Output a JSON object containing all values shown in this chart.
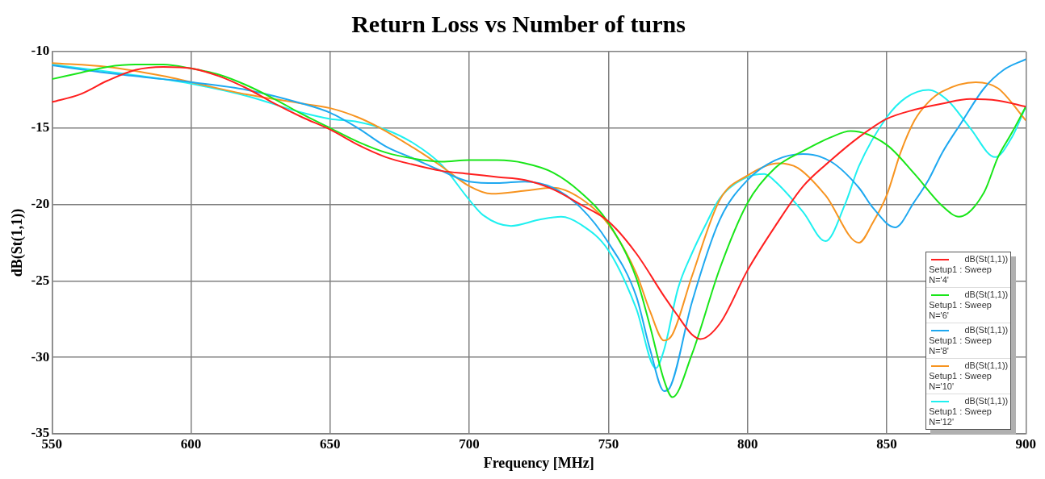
{
  "chart_data": {
    "type": "line",
    "title": "Return Loss vs Number of turns",
    "xlabel": "Frequency [MHz]",
    "ylabel": "dB(St(1,1))",
    "xlim": [
      550,
      900
    ],
    "xticks": [
      550,
      600,
      650,
      700,
      750,
      800,
      850,
      900
    ],
    "ylim": [
      -35,
      -10
    ],
    "yticks": [
      -35,
      -30,
      -25,
      -20,
      -15,
      -10
    ],
    "grid": true,
    "legend": "bottom right",
    "marker": "none",
    "line_style": "solid",
    "series": [
      {
        "name": "dB(St(1,1))\nSetup1 : Sweep\nN='4'",
        "color": "#ff1f1f",
        "x": [
          550,
          560,
          570,
          580,
          590,
          600,
          610,
          620,
          630,
          640,
          650,
          660,
          670,
          680,
          690,
          700,
          710,
          720,
          730,
          740,
          750,
          760,
          770,
          775,
          780,
          783,
          790,
          800,
          810,
          820,
          830,
          840,
          850,
          860,
          870,
          880,
          890,
          900
        ],
        "values": [
          -13.3,
          -12.8,
          -11.9,
          -11.2,
          -11.0,
          -11.1,
          -11.6,
          -12.4,
          -13.4,
          -14.3,
          -15.1,
          -16.1,
          -16.9,
          -17.4,
          -17.8,
          -18.0,
          -18.2,
          -18.4,
          -19.0,
          -20.0,
          -21.1,
          -23.2,
          -26.0,
          -27.3,
          -28.5,
          -28.8,
          -27.8,
          -24.3,
          -21.4,
          -18.8,
          -17.1,
          -15.6,
          -14.4,
          -13.8,
          -13.4,
          -13.1,
          -13.2,
          -13.6
        ]
      },
      {
        "name": "dB(St(1,1))\nSetup1 : Sweep\nN='6'",
        "color": "#19e619",
        "x": [
          550,
          560,
          570,
          580,
          590,
          600,
          610,
          620,
          630,
          640,
          650,
          660,
          670,
          680,
          690,
          700,
          710,
          720,
          730,
          740,
          750,
          760,
          765,
          770,
          773,
          780,
          790,
          800,
          810,
          820,
          830,
          837,
          850,
          860,
          870,
          876,
          885,
          890,
          895,
          900
        ],
        "values": [
          -11.8,
          -11.4,
          -11.0,
          -10.85,
          -10.85,
          -11.1,
          -11.5,
          -12.2,
          -13.1,
          -14.1,
          -15.0,
          -15.9,
          -16.6,
          -17.0,
          -17.2,
          -17.1,
          -17.1,
          -17.3,
          -17.9,
          -19.2,
          -21.2,
          -24.8,
          -28.0,
          -31.5,
          -32.6,
          -29.8,
          -24.2,
          -19.9,
          -17.6,
          -16.5,
          -15.6,
          -15.2,
          -16.1,
          -18.0,
          -20.1,
          -20.8,
          -19.2,
          -16.9,
          -15.3,
          -13.6
        ]
      },
      {
        "name": "dB(St(1,1))\nSetup1 : Sweep\nN='8'",
        "color": "#1ea8f0",
        "x": [
          550,
          570,
          590,
          600,
          620,
          640,
          650,
          660,
          670,
          680,
          690,
          700,
          710,
          720,
          730,
          740,
          750,
          760,
          765,
          770,
          772,
          780,
          790,
          800,
          810,
          820,
          830,
          840,
          845,
          853,
          860,
          865,
          870,
          877,
          885,
          892,
          900
        ],
        "values": [
          -10.9,
          -11.4,
          -11.8,
          -12.0,
          -12.5,
          -13.4,
          -14.0,
          -15.0,
          -16.2,
          -17.0,
          -17.8,
          -18.5,
          -18.6,
          -18.5,
          -18.9,
          -20.2,
          -22.5,
          -26.0,
          -29.5,
          -32.2,
          -32.0,
          -26.4,
          -21.0,
          -18.4,
          -17.1,
          -16.7,
          -17.2,
          -18.9,
          -20.2,
          -21.5,
          -19.8,
          -18.4,
          -16.6,
          -14.6,
          -12.4,
          -11.2,
          -10.5
        ]
      },
      {
        "name": "dB(St(1,1))\nSetup1 : Sweep\nN='10'",
        "color": "#f79420",
        "x": [
          550,
          570,
          590,
          600,
          620,
          640,
          650,
          660,
          668,
          680,
          690,
          700,
          708,
          720,
          730,
          740,
          750,
          760,
          765,
          770,
          773,
          780,
          790,
          800,
          811,
          818,
          828,
          840,
          845,
          850,
          855,
          860,
          865,
          870,
          882,
          890,
          900
        ],
        "values": [
          -10.75,
          -11.0,
          -11.6,
          -12.0,
          -12.8,
          -13.4,
          -13.7,
          -14.3,
          -15.0,
          -16.3,
          -17.5,
          -18.8,
          -19.3,
          -19.1,
          -18.9,
          -19.6,
          -21.3,
          -24.5,
          -27.0,
          -28.9,
          -28.5,
          -24.7,
          -19.7,
          -18.1,
          -17.3,
          -17.6,
          -19.4,
          -22.5,
          -21.2,
          -19.4,
          -16.6,
          -14.5,
          -13.3,
          -12.6,
          -12.0,
          -12.4,
          -14.5
        ]
      },
      {
        "name": "dB(St(1,1))\nSetup1 : Sweep\nN='12'",
        "color": "#1ff0f0",
        "x": [
          550,
          570,
          590,
          600,
          620,
          640,
          650,
          660,
          670,
          680,
          690,
          700,
          705,
          715,
          725,
          733,
          740,
          750,
          760,
          767,
          770,
          775,
          780,
          785,
          790,
          800,
          806,
          810,
          820,
          828,
          835,
          840,
          850,
          857,
          865,
          872,
          880,
          889,
          895,
          900
        ],
        "values": [
          -10.85,
          -11.3,
          -11.8,
          -12.1,
          -12.9,
          -14.0,
          -14.4,
          -14.6,
          -15.1,
          -16.0,
          -17.4,
          -19.7,
          -20.7,
          -21.4,
          -21.0,
          -20.8,
          -21.3,
          -23.0,
          -26.8,
          -30.7,
          -29.5,
          -25.5,
          -23.2,
          -21.3,
          -19.6,
          -18.2,
          -18.0,
          -18.5,
          -20.5,
          -22.4,
          -20.0,
          -17.5,
          -14.3,
          -13.0,
          -12.5,
          -13.2,
          -15.0,
          -16.9,
          -15.6,
          -13.6
        ]
      }
    ]
  }
}
